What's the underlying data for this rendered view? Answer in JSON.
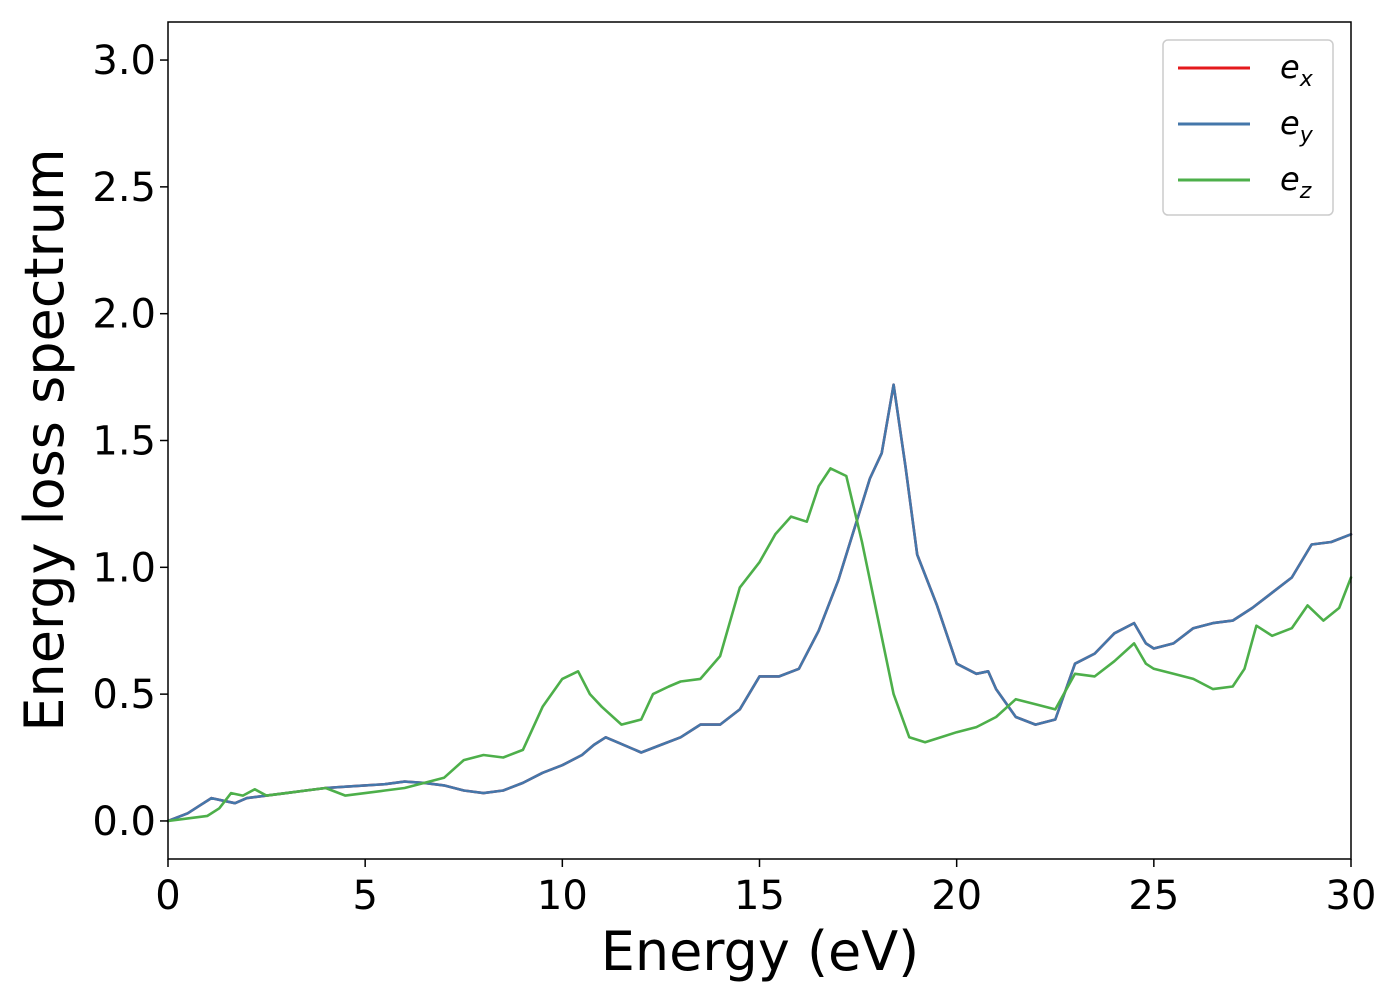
{
  "chart_data": {
    "type": "line",
    "title": "",
    "xlabel": "Energy (eV)",
    "ylabel": "Energy loss spectrum",
    "xlim": [
      0,
      30
    ],
    "ylim": [
      -0.15,
      3.15
    ],
    "xticks": [
      0,
      5,
      10,
      15,
      20,
      25,
      30
    ],
    "xtick_labels": [
      "0",
      "5",
      "10",
      "15",
      "20",
      "25",
      "30"
    ],
    "yticks": [
      0.0,
      0.5,
      1.0,
      1.5,
      2.0,
      2.5,
      3.0
    ],
    "ytick_labels": [
      "0.0",
      "0.5",
      "1.0",
      "1.5",
      "2.0",
      "2.5",
      "3.0"
    ],
    "grid": false,
    "legend_position": "top-right",
    "series": [
      {
        "name": "e",
        "subscript": "x",
        "color": "#e41a1c",
        "x": [
          0,
          0.5,
          0.8,
          1.1,
          1.4,
          1.7,
          2.0,
          2.5,
          3.0,
          3.5,
          4.0,
          4.5,
          5.0,
          5.5,
          6.0,
          6.5,
          7.0,
          7.5,
          8.0,
          8.5,
          9.0,
          9.5,
          10.0,
          10.5,
          10.8,
          11.1,
          11.4,
          12.0,
          12.5,
          13.0,
          13.5,
          14.0,
          14.5,
          15.0,
          15.5,
          16.0,
          16.5,
          17.0,
          17.5,
          17.8,
          18.1,
          18.4,
          18.7,
          19.0,
          19.5,
          20.0,
          20.5,
          20.8,
          21.0,
          21.5,
          22.0,
          22.5,
          23.0,
          23.5,
          24.0,
          24.5,
          24.8,
          25.0,
          25.5,
          26.0,
          26.5,
          27.0,
          27.5,
          28.0,
          28.5,
          29.0,
          29.5,
          30.0
        ],
        "y": [
          0.0,
          0.03,
          0.06,
          0.09,
          0.08,
          0.07,
          0.09,
          0.1,
          0.11,
          0.12,
          0.13,
          0.135,
          0.14,
          0.145,
          0.155,
          0.15,
          0.14,
          0.12,
          0.11,
          0.12,
          0.15,
          0.19,
          0.22,
          0.26,
          0.3,
          0.33,
          0.31,
          0.27,
          0.3,
          0.33,
          0.38,
          0.38,
          0.44,
          0.57,
          0.57,
          0.6,
          0.75,
          0.95,
          1.2,
          1.35,
          1.45,
          1.72,
          1.4,
          1.05,
          0.85,
          0.62,
          0.58,
          0.59,
          0.52,
          0.41,
          0.38,
          0.4,
          0.62,
          0.66,
          0.74,
          0.78,
          0.7,
          0.68,
          0.7,
          0.76,
          0.78,
          0.79,
          0.84,
          0.9,
          0.96,
          1.09,
          1.1,
          1.13
        ]
      },
      {
        "name": "e",
        "subscript": "y",
        "color": "#4477aa",
        "x": [
          0,
          0.5,
          0.8,
          1.1,
          1.4,
          1.7,
          2.0,
          2.5,
          3.0,
          3.5,
          4.0,
          4.5,
          5.0,
          5.5,
          6.0,
          6.5,
          7.0,
          7.5,
          8.0,
          8.5,
          9.0,
          9.5,
          10.0,
          10.5,
          10.8,
          11.1,
          11.4,
          12.0,
          12.5,
          13.0,
          13.5,
          14.0,
          14.5,
          15.0,
          15.5,
          16.0,
          16.5,
          17.0,
          17.5,
          17.8,
          18.1,
          18.4,
          18.7,
          19.0,
          19.5,
          20.0,
          20.5,
          20.8,
          21.0,
          21.5,
          22.0,
          22.5,
          23.0,
          23.5,
          24.0,
          24.5,
          24.8,
          25.0,
          25.5,
          26.0,
          26.5,
          27.0,
          27.5,
          28.0,
          28.5,
          29.0,
          29.5,
          30.0
        ],
        "y": [
          0.0,
          0.03,
          0.06,
          0.09,
          0.08,
          0.07,
          0.09,
          0.1,
          0.11,
          0.12,
          0.13,
          0.135,
          0.14,
          0.145,
          0.155,
          0.15,
          0.14,
          0.12,
          0.11,
          0.12,
          0.15,
          0.19,
          0.22,
          0.26,
          0.3,
          0.33,
          0.31,
          0.27,
          0.3,
          0.33,
          0.38,
          0.38,
          0.44,
          0.57,
          0.57,
          0.6,
          0.75,
          0.95,
          1.2,
          1.35,
          1.45,
          1.72,
          1.4,
          1.05,
          0.85,
          0.62,
          0.58,
          0.59,
          0.52,
          0.41,
          0.38,
          0.4,
          0.62,
          0.66,
          0.74,
          0.78,
          0.7,
          0.68,
          0.7,
          0.76,
          0.78,
          0.79,
          0.84,
          0.9,
          0.96,
          1.09,
          1.1,
          1.13
        ]
      },
      {
        "name": "e",
        "subscript": "z",
        "color": "#4daf4a",
        "x": [
          0,
          0.5,
          1.0,
          1.3,
          1.6,
          1.9,
          2.2,
          2.5,
          3.0,
          3.5,
          4.0,
          4.5,
          5.0,
          5.5,
          6.0,
          6.5,
          7.0,
          7.5,
          8.0,
          8.5,
          9.0,
          9.5,
          10.0,
          10.4,
          10.7,
          11.0,
          11.5,
          12.0,
          12.3,
          12.7,
          13.0,
          13.5,
          14.0,
          14.5,
          15.0,
          15.4,
          15.8,
          16.2,
          16.5,
          16.8,
          17.2,
          17.6,
          18.0,
          18.4,
          18.8,
          19.2,
          19.6,
          20.0,
          20.5,
          21.0,
          21.5,
          22.0,
          22.5,
          23.0,
          23.5,
          24.0,
          24.5,
          24.8,
          25.0,
          25.5,
          26.0,
          26.5,
          27.0,
          27.3,
          27.6,
          28.0,
          28.5,
          28.9,
          29.3,
          29.7,
          30.0
        ],
        "y": [
          0.0,
          0.01,
          0.02,
          0.05,
          0.11,
          0.1,
          0.125,
          0.1,
          0.11,
          0.12,
          0.13,
          0.1,
          0.11,
          0.12,
          0.13,
          0.15,
          0.17,
          0.24,
          0.26,
          0.25,
          0.28,
          0.45,
          0.56,
          0.59,
          0.5,
          0.45,
          0.38,
          0.4,
          0.5,
          0.53,
          0.55,
          0.56,
          0.65,
          0.92,
          1.02,
          1.13,
          1.2,
          1.18,
          1.32,
          1.39,
          1.36,
          1.1,
          0.8,
          0.5,
          0.33,
          0.31,
          0.33,
          0.35,
          0.37,
          0.41,
          0.48,
          0.46,
          0.44,
          0.58,
          0.57,
          0.63,
          0.7,
          0.62,
          0.6,
          0.58,
          0.56,
          0.52,
          0.53,
          0.6,
          0.77,
          0.73,
          0.76,
          0.85,
          0.79,
          0.84,
          0.96
        ]
      }
    ]
  }
}
